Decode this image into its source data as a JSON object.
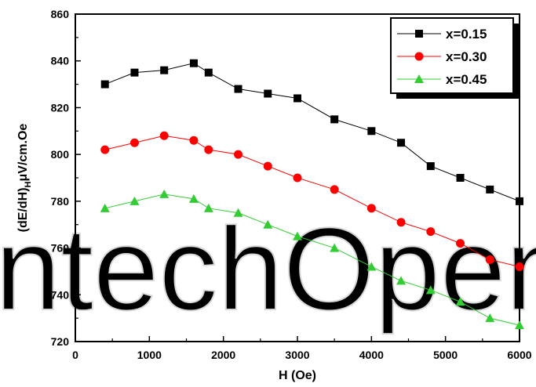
{
  "chart_data": {
    "type": "line",
    "xlabel": "H (Oe)",
    "ylabel": "(dE/dH)H μV/cm.Oe",
    "ylabel_parts": {
      "main": "(dE/dH)",
      "sub": "H",
      "rest": "μV/cm.Oe"
    },
    "xlim": [
      0,
      6000
    ],
    "ylim": [
      720,
      860
    ],
    "xticks": [
      0,
      1000,
      2000,
      3000,
      4000,
      5000,
      6000
    ],
    "yticks": [
      720,
      740,
      760,
      780,
      800,
      820,
      840,
      860
    ],
    "grid": false,
    "legend_position": "top-right",
    "series": [
      {
        "name": "x=0.15",
        "color": "#000000",
        "marker": "square",
        "x": [
          400,
          800,
          1200,
          1600,
          1800,
          2200,
          2600,
          3000,
          3500,
          4000,
          4400,
          4800,
          5200,
          5600,
          6000
        ],
        "y": [
          830,
          835,
          836,
          839,
          835,
          828,
          826,
          824,
          815,
          810,
          805,
          795,
          790,
          785,
          780
        ]
      },
      {
        "name": "x=0.30",
        "color": "#ff0000",
        "marker": "circle",
        "x": [
          400,
          800,
          1200,
          1600,
          1800,
          2200,
          2600,
          3000,
          3500,
          4000,
          4400,
          4800,
          5200,
          5600,
          6000
        ],
        "y": [
          802,
          805,
          808,
          806,
          802,
          800,
          795,
          790,
          785,
          777,
          771,
          767,
          762,
          755,
          752
        ]
      },
      {
        "name": "x=0.45",
        "color": "#33cc33",
        "marker": "triangle",
        "x": [
          400,
          800,
          1200,
          1600,
          1800,
          2200,
          2600,
          3000,
          3500,
          4000,
          4400,
          4800,
          5200,
          5600,
          6000
        ],
        "y": [
          777,
          780,
          783,
          781,
          777,
          775,
          770,
          765,
          760,
          752,
          746,
          742,
          737,
          730,
          727
        ]
      }
    ]
  },
  "watermark": {
    "text": "IntechOpen",
    "color": "#d8d8d8"
  }
}
